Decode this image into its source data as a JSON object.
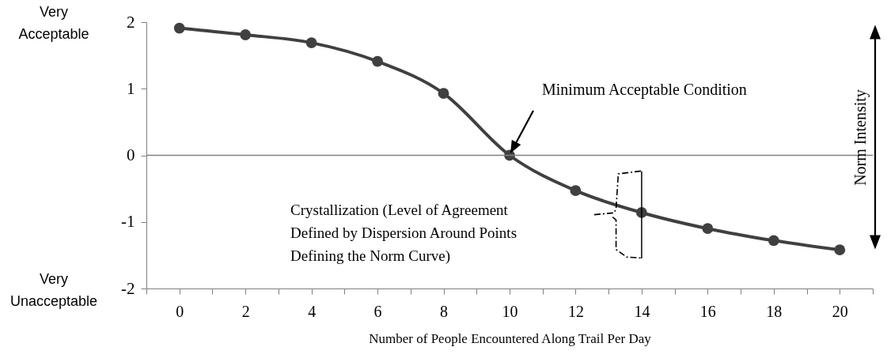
{
  "chart_data": {
    "type": "line",
    "xlabel": "Number of People Encountered Along Trail Per Day",
    "x": [
      0,
      2,
      4,
      6,
      8,
      10,
      12,
      14,
      16,
      18,
      20
    ],
    "series": [
      {
        "color": "#404040",
        "values": [
          1.91,
          1.81,
          1.69,
          1.41,
          0.93,
          0,
          -0.53,
          -0.86,
          -1.1,
          -1.28,
          -1.42
        ],
        "errors": [
          null,
          null,
          null,
          null,
          null,
          null,
          null,
          [
            -1.55,
            -0.24
          ],
          null,
          null,
          null
        ]
      }
    ],
    "xlim": [
      -1,
      21
    ],
    "xticks": [
      {
        "value": -1,
        "label": null
      },
      0,
      {
        "value": 1,
        "label": null
      },
      2,
      {
        "value": 3,
        "label": null
      },
      4,
      {
        "value": 5,
        "label": null
      },
      6,
      {
        "value": 7,
        "label": null
      },
      8,
      {
        "value": 9,
        "label": null
      },
      10,
      {
        "value": 11,
        "label": null
      },
      12,
      {
        "value": 13,
        "label": null
      },
      14,
      {
        "value": 15,
        "label": null
      },
      16,
      {
        "value": 17,
        "label": null
      },
      18,
      {
        "value": 19,
        "label": null
      },
      20,
      {
        "value": 21,
        "label": null
      }
    ],
    "ylim": [
      -2,
      2
    ],
    "yticks": [
      -2,
      -1,
      0,
      1,
      2
    ],
    "ref_lines": [
      {
        "axis": "y",
        "value": 0,
        "color": "#808080"
      }
    ],
    "marker": "circle",
    "annotations": [
      "Very\nAcceptable",
      "Very\nUnacceptable",
      "Minimum Acceptable Condition",
      "Crystallization (Level of Agreement\nDefined by Dispersion Around Points\nDefining the Norm Curve)",
      "Norm Intensity"
    ]
  }
}
